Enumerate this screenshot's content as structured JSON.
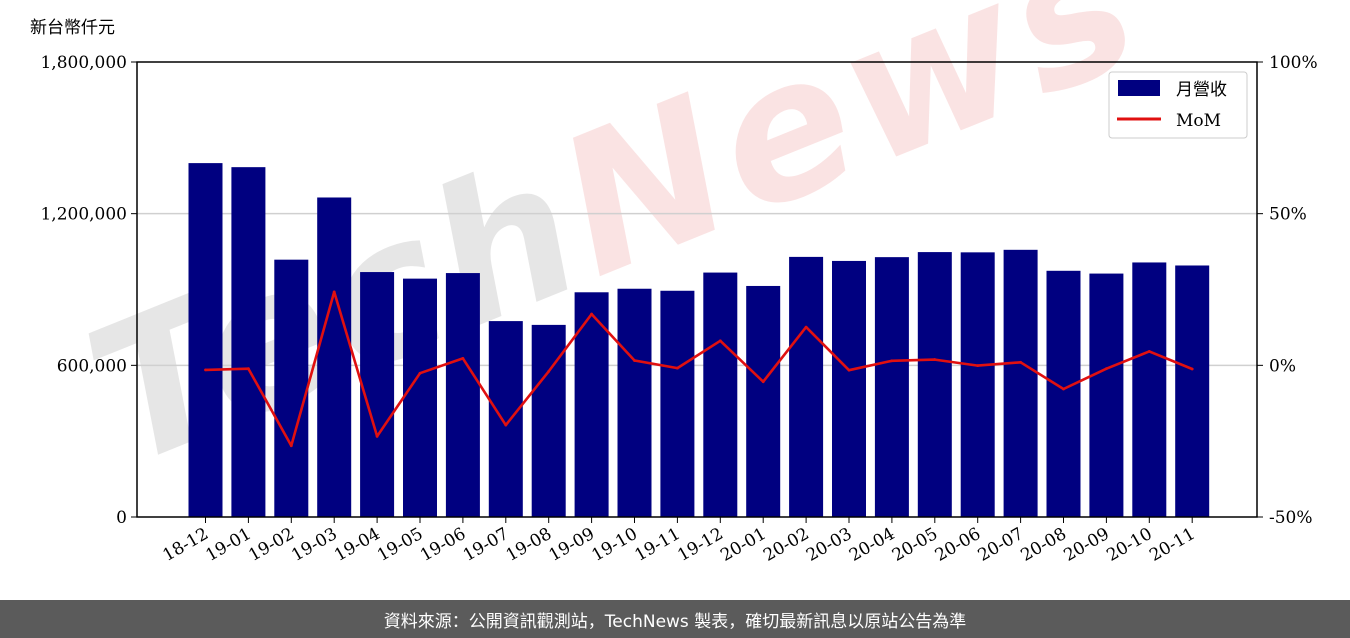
{
  "chart_data": {
    "type": "bar",
    "unit_label": "新台幣仟元",
    "categories": [
      "18-12",
      "19-01",
      "19-02",
      "19-03",
      "19-04",
      "19-05",
      "19-06",
      "19-07",
      "19-08",
      "19-09",
      "19-10",
      "19-11",
      "19-12",
      "20-01",
      "20-02",
      "20-03",
      "20-04",
      "20-05",
      "20-06",
      "20-07",
      "20-08",
      "20-09",
      "20-10",
      "20-11"
    ],
    "series": [
      {
        "name": "月營收",
        "kind": "bar",
        "axis": "left",
        "color": "#000080",
        "values": [
          1400000,
          1384000,
          1018000,
          1264000,
          969000,
          943000,
          965000,
          775000,
          760000,
          889000,
          903000,
          895000,
          967000,
          914000,
          1029000,
          1013000,
          1028000,
          1048000,
          1047000,
          1057000,
          974000,
          963000,
          1007000,
          995000
        ]
      },
      {
        "name": "MoM",
        "kind": "line",
        "axis": "right",
        "color": "#e01010",
        "values": [
          -1.5,
          -1.1,
          -26.5,
          24.2,
          -23.4,
          -2.6,
          2.3,
          -19.7,
          -2.0,
          16.9,
          1.6,
          -0.9,
          8.1,
          -5.4,
          12.6,
          -1.6,
          1.5,
          1.9,
          -0.1,
          1.0,
          -7.8,
          -1.1,
          4.6,
          -1.2
        ]
      }
    ],
    "y_left": {
      "min": 0,
      "max": 1800000,
      "ticks": [
        0,
        600000,
        1200000,
        1800000
      ],
      "tick_labels": [
        "0",
        "600,000",
        "1,200,000",
        "1,800,000"
      ]
    },
    "y_right": {
      "min": -50,
      "max": 100,
      "ticks": [
        -50,
        0,
        50,
        100
      ],
      "tick_labels": [
        "-50%",
        "0%",
        "50%",
        "100%"
      ]
    },
    "grid": "horizontal",
    "legend_position": "top-right"
  },
  "watermark": "TechNews",
  "footer": {
    "text": "資料來源：公開資訊觀測站，TechNews 製表，確切最新訊息以原站公告為準"
  }
}
